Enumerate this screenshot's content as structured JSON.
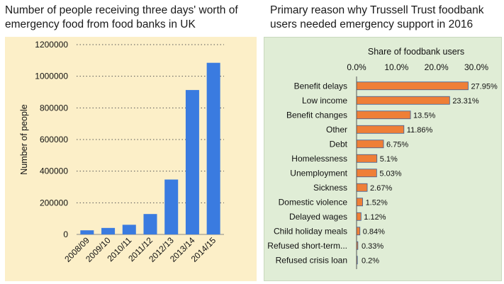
{
  "chart_data": [
    {
      "type": "bar",
      "title": "Number of people receiving three days' worth of emergency food from food banks in UK",
      "categories": [
        "2008/09",
        "2009/10",
        "2010/11",
        "2011/12",
        "2012/13",
        "2013/14",
        "2014/15"
      ],
      "values": [
        26000,
        41000,
        61000,
        129000,
        347000,
        913000,
        1085000
      ],
      "xlabel": "",
      "ylabel": "Number of people",
      "ylim": [
        0,
        1200000
      ],
      "yticks": [
        "0",
        "200000",
        "400000",
        "600000",
        "800000",
        "1000000",
        "1200000"
      ],
      "grid": true,
      "bar_color": "#3a7be0",
      "background": "#fcefc8"
    },
    {
      "type": "bar",
      "orientation": "horizontal",
      "title": "Primary reason why Trussell Trust foodbank users needed emergency support in 2016",
      "xlabel": "Share of foodbank users",
      "categories": [
        "Benefit delays",
        "Low income",
        "Benefit changes",
        "Other",
        "Debt",
        "Homelessness",
        "Unemployment",
        "Sickness",
        "Domestic violence",
        "Delayed wages",
        "Child holiday meals",
        "Refused short-term...",
        "Refused crisis loan"
      ],
      "values": [
        27.95,
        23.31,
        13.5,
        11.86,
        6.75,
        5.1,
        5.03,
        2.67,
        1.52,
        1.12,
        0.84,
        0.33,
        0.2
      ],
      "value_labels": [
        "27.95%",
        "23.31%",
        "13.5%",
        "11.86%",
        "6.75%",
        "5.1%",
        "5.03%",
        "2.67%",
        "1.52%",
        "1.12%",
        "0.84%",
        "0.33%",
        "0.2%"
      ],
      "xlim": [
        0,
        30
      ],
      "xticks": [
        "0.0%",
        "10.0%",
        "20.0%",
        "30.0%"
      ],
      "bar_color": "#ef7f37",
      "bar_edge_color": "#3a5f9a",
      "background": "#e0edd6"
    }
  ]
}
